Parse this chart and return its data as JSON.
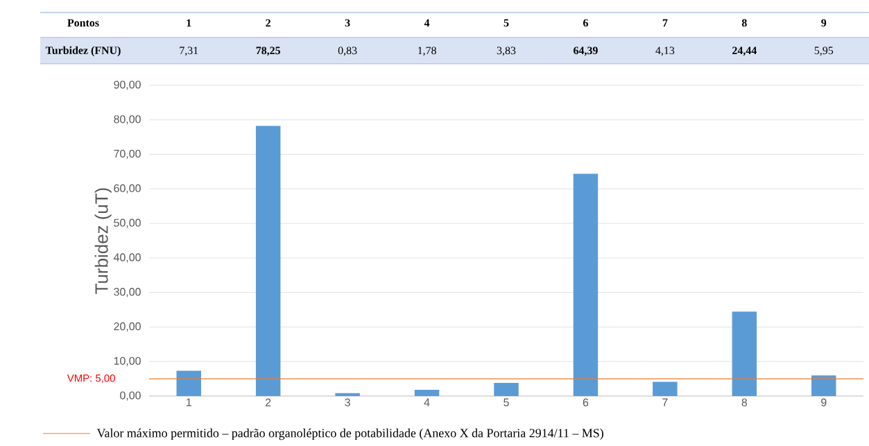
{
  "chart_data": {
    "type": "bar",
    "categories": [
      "1",
      "2",
      "3",
      "4",
      "5",
      "6",
      "7",
      "8",
      "9"
    ],
    "values": [
      7.31,
      78.25,
      0.83,
      1.78,
      3.83,
      64.39,
      4.13,
      24.44,
      5.95
    ],
    "value_labels": [
      "7,31",
      "**78,25**",
      "0,83",
      "1,78",
      "3,83",
      "**64,39**",
      "4,13",
      "**24,44**",
      "5,95"
    ],
    "color": "#5b9bd5",
    "ylabel": "Turbidez (uT)",
    "ylim": [
      0,
      90
    ],
    "yticks": [
      {
        "value": 0,
        "label": "0,00"
      },
      {
        "value": 10,
        "label": "10,00"
      },
      {
        "value": 20,
        "label": "20,00"
      },
      {
        "value": 30,
        "label": "30,00"
      },
      {
        "value": 40,
        "label": "40,00"
      },
      {
        "value": 50,
        "label": "50,00"
      },
      {
        "value": 60,
        "label": "60,00"
      },
      {
        "value": 70,
        "label": "70,00"
      },
      {
        "value": 80,
        "label": "80,00"
      },
      {
        "value": 90,
        "label": "90,00"
      }
    ],
    "grid": "y",
    "ref_lines": [
      {
        "axis": "y",
        "value": 5,
        "label": "Valor máximo permitido – padrão organoléptico de potabilidade (Anexo X da Portaria 2914/11 – MS)",
        "color": "#ed7d31"
      }
    ],
    "annotations": [
      "Pontos",
      "Turbidez (FNU)",
      "VMP: 5,00"
    ]
  }
}
